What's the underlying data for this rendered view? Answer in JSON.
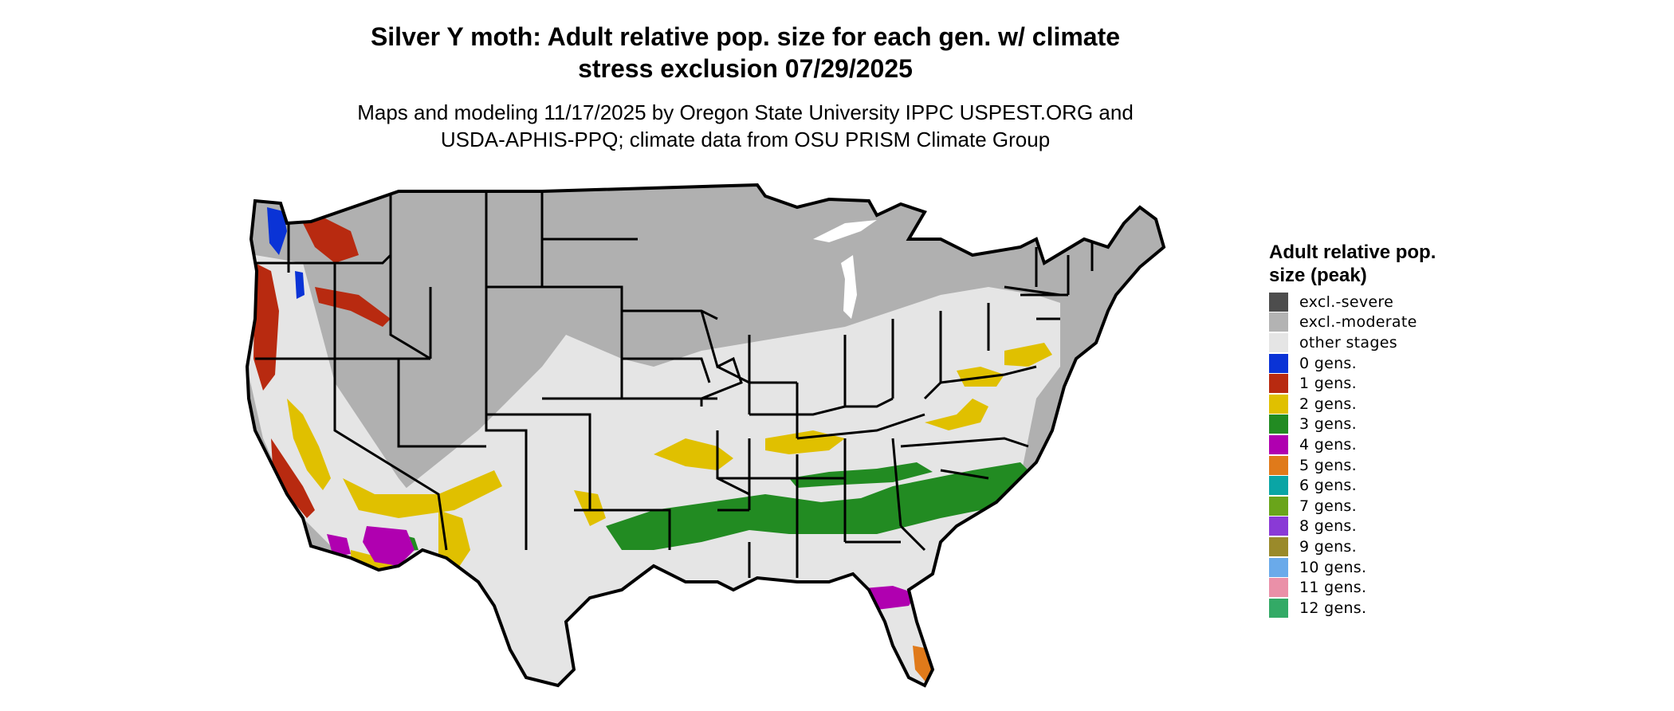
{
  "title_line1": "Silver Y moth: Adult relative pop. size for each gen. w/ climate",
  "title_line2": "stress exclusion 07/29/2025",
  "subtitle_line1": "Maps and modeling 11/17/2025 by Oregon State University IPPC USPEST.ORG and",
  "subtitle_line2": "USDA-APHIS-PPQ; climate data from OSU PRISM Climate Group",
  "legend": {
    "title": "Adult relative pop. size (peak)",
    "items": [
      {
        "label": "excl.-severe",
        "color": "#4d4d4d"
      },
      {
        "label": "excl.-moderate",
        "color": "#b3b3b3"
      },
      {
        "label": "other stages",
        "color": "#e5e5e5"
      },
      {
        "label": "0 gens.",
        "color": "#0a33d6"
      },
      {
        "label": "1 gens.",
        "color": "#b82a10"
      },
      {
        "label": "2 gens.",
        "color": "#e0c000"
      },
      {
        "label": "3 gens.",
        "color": "#228b22"
      },
      {
        "label": "4 gens.",
        "color": "#b000b0"
      },
      {
        "label": "5 gens.",
        "color": "#e07a1a"
      },
      {
        "label": "6 gens.",
        "color": "#0aa5a5"
      },
      {
        "label": "7 gens.",
        "color": "#6aa51a"
      },
      {
        "label": "8 gens.",
        "color": "#8a3ad6"
      },
      {
        "label": "9 gens.",
        "color": "#9a8a2a"
      },
      {
        "label": "10 gens.",
        "color": "#6aaaea"
      },
      {
        "label": "11 gens.",
        "color": "#ea90a8"
      },
      {
        "label": "12 gens.",
        "color": "#33aa66"
      }
    ]
  },
  "map": {
    "background_color": "#b0b0b0",
    "other_stages_color": "#e5e5e5",
    "border_color": "#000000",
    "lake_color": "#ffffff"
  }
}
